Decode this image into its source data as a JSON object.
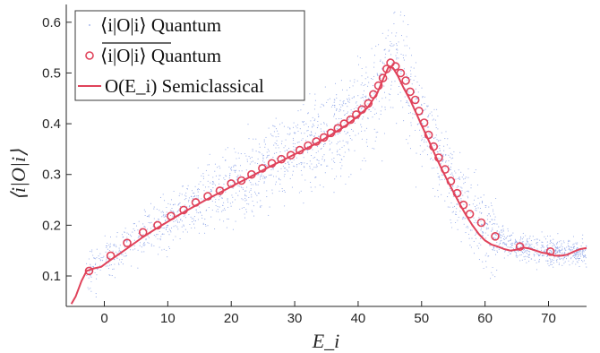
{
  "chart_data": {
    "type": "scatter",
    "xlabel": "E_i",
    "ylabel": "⟨i|O|i⟩",
    "xlim": [
      -6,
      76
    ],
    "ylim": [
      0.04,
      0.635
    ],
    "xticks": [
      0,
      10,
      20,
      30,
      40,
      50,
      60,
      70
    ],
    "yticks": [
      0.1,
      0.2,
      0.3,
      0.4,
      0.5,
      0.6
    ],
    "grid": false,
    "legend_position": "top-left",
    "colors": {
      "scatter": "#8fa6e8",
      "average": "#e0425a",
      "curve": "#e0425a",
      "axis": "#262626"
    },
    "legend": [
      {
        "kind": "dots",
        "label": "⟨i|O|i⟩ Quantum"
      },
      {
        "kind": "circles",
        "label": "⟨i|O|i⟩ Quantum",
        "overline": true
      },
      {
        "kind": "line",
        "label": "O(E_i) Semiclassical"
      }
    ],
    "series": [
      {
        "name": "⟨i|O|i⟩ Quantum (averaged)",
        "marker": "open-circle",
        "points": [
          [
            -2.4,
            0.11
          ],
          [
            1.0,
            0.14
          ],
          [
            3.6,
            0.165
          ],
          [
            6.1,
            0.186
          ],
          [
            8.4,
            0.2
          ],
          [
            10.5,
            0.218
          ],
          [
            12.5,
            0.23
          ],
          [
            14.4,
            0.245
          ],
          [
            16.3,
            0.257
          ],
          [
            18.2,
            0.268
          ],
          [
            20.0,
            0.282
          ],
          [
            21.6,
            0.288
          ],
          [
            23.2,
            0.3
          ],
          [
            24.9,
            0.312
          ],
          [
            26.4,
            0.322
          ],
          [
            27.9,
            0.33
          ],
          [
            29.4,
            0.338
          ],
          [
            30.8,
            0.348
          ],
          [
            32.1,
            0.357
          ],
          [
            33.4,
            0.365
          ],
          [
            34.6,
            0.373
          ],
          [
            35.7,
            0.382
          ],
          [
            36.8,
            0.391
          ],
          [
            37.8,
            0.4
          ],
          [
            38.8,
            0.408
          ],
          [
            39.7,
            0.418
          ],
          [
            40.6,
            0.428
          ],
          [
            41.6,
            0.44
          ],
          [
            42.4,
            0.458
          ],
          [
            43.2,
            0.475
          ],
          [
            43.9,
            0.49
          ],
          [
            44.5,
            0.508
          ],
          [
            45.1,
            0.52
          ],
          [
            45.9,
            0.513
          ],
          [
            46.7,
            0.5
          ],
          [
            47.5,
            0.485
          ],
          [
            48.2,
            0.463
          ],
          [
            49.0,
            0.447
          ],
          [
            49.6,
            0.425
          ],
          [
            50.4,
            0.402
          ],
          [
            51.1,
            0.378
          ],
          [
            51.9,
            0.355
          ],
          [
            52.7,
            0.333
          ],
          [
            53.7,
            0.31
          ],
          [
            54.6,
            0.287
          ],
          [
            55.6,
            0.263
          ],
          [
            56.6,
            0.24
          ],
          [
            57.6,
            0.222
          ],
          [
            59.4,
            0.205
          ],
          [
            61.6,
            0.178
          ],
          [
            65.5,
            0.158
          ],
          [
            70.3,
            0.148
          ]
        ]
      },
      {
        "name": "O(E_i) Semiclassical",
        "marker": "line",
        "points": [
          [
            -5.2,
            0.045
          ],
          [
            -4.5,
            0.06
          ],
          [
            -3.6,
            0.09
          ],
          [
            -2.8,
            0.11
          ],
          [
            -1.6,
            0.115
          ],
          [
            -0.5,
            0.118
          ],
          [
            0.8,
            0.13
          ],
          [
            2.2,
            0.142
          ],
          [
            4.0,
            0.158
          ],
          [
            6.0,
            0.176
          ],
          [
            8.0,
            0.192
          ],
          [
            10.0,
            0.207
          ],
          [
            12.0,
            0.222
          ],
          [
            14.0,
            0.236
          ],
          [
            16.0,
            0.25
          ],
          [
            18.0,
            0.263
          ],
          [
            20.0,
            0.276
          ],
          [
            22.0,
            0.289
          ],
          [
            24.0,
            0.302
          ],
          [
            26.0,
            0.315
          ],
          [
            28.0,
            0.327
          ],
          [
            30.0,
            0.34
          ],
          [
            32.0,
            0.352
          ],
          [
            34.0,
            0.365
          ],
          [
            36.0,
            0.38
          ],
          [
            38.0,
            0.396
          ],
          [
            40.0,
            0.415
          ],
          [
            41.5,
            0.432
          ],
          [
            43.0,
            0.46
          ],
          [
            44.0,
            0.49
          ],
          [
            44.8,
            0.512
          ],
          [
            45.5,
            0.51
          ],
          [
            46.3,
            0.493
          ],
          [
            47.2,
            0.47
          ],
          [
            48.2,
            0.447
          ],
          [
            49.0,
            0.425
          ],
          [
            50.0,
            0.397
          ],
          [
            51.0,
            0.37
          ],
          [
            52.0,
            0.342
          ],
          [
            53.0,
            0.315
          ],
          [
            54.0,
            0.29
          ],
          [
            55.0,
            0.266
          ],
          [
            56.0,
            0.242
          ],
          [
            57.0,
            0.22
          ],
          [
            58.0,
            0.2
          ],
          [
            59.0,
            0.183
          ],
          [
            60.0,
            0.17
          ],
          [
            61.0,
            0.162
          ],
          [
            62.0,
            0.158
          ],
          [
            63.0,
            0.153
          ],
          [
            64.0,
            0.15
          ],
          [
            65.0,
            0.152
          ],
          [
            66.0,
            0.156
          ],
          [
            67.0,
            0.154
          ],
          [
            68.0,
            0.15
          ],
          [
            69.0,
            0.146
          ],
          [
            70.0,
            0.144
          ],
          [
            71.0,
            0.14
          ],
          [
            72.0,
            0.14
          ],
          [
            73.0,
            0.142
          ],
          [
            74.0,
            0.148
          ],
          [
            75.0,
            0.153
          ],
          [
            76.0,
            0.155
          ]
        ]
      }
    ]
  }
}
